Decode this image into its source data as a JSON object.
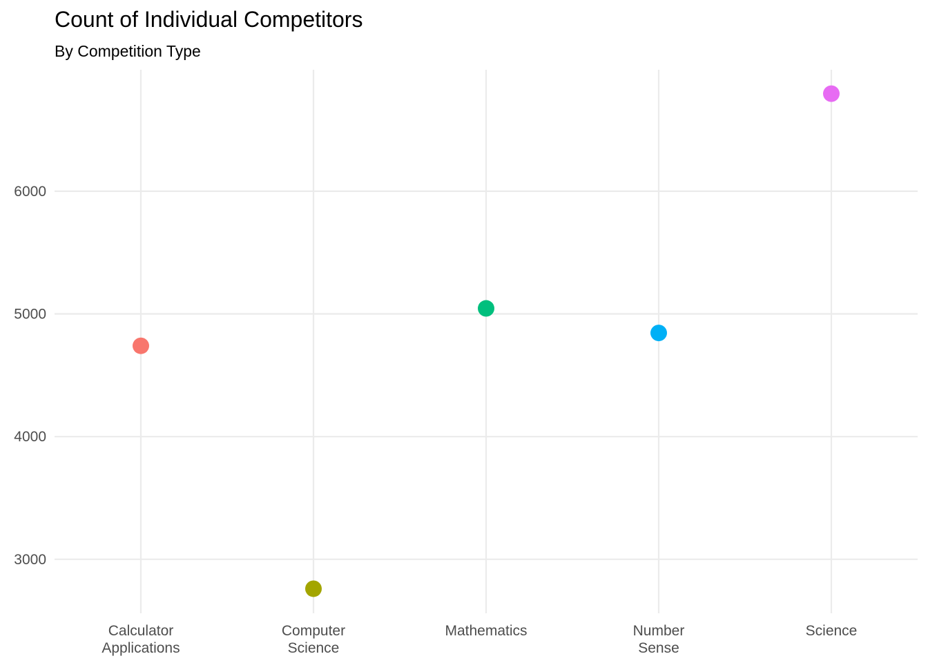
{
  "chart_data": {
    "type": "scatter",
    "title": "Count of Individual Competitors",
    "subtitle": "By Competition Type",
    "xlabel": "",
    "ylabel": "",
    "categories": [
      [
        "Calculator",
        "Applications"
      ],
      [
        "Computer",
        "Science"
      ],
      [
        "Mathematics"
      ],
      [
        "Number",
        "Sense"
      ],
      [
        "Science"
      ]
    ],
    "values": [
      4740,
      2760,
      5045,
      4845,
      6795
    ],
    "colors": [
      "#F8766D",
      "#A3A500",
      "#00BF7D",
      "#00B0F6",
      "#E76BF3"
    ],
    "yticks": [
      3000,
      4000,
      5000,
      6000
    ],
    "ylim": [
      2560,
      6990
    ],
    "grid": true,
    "legend": "none"
  }
}
